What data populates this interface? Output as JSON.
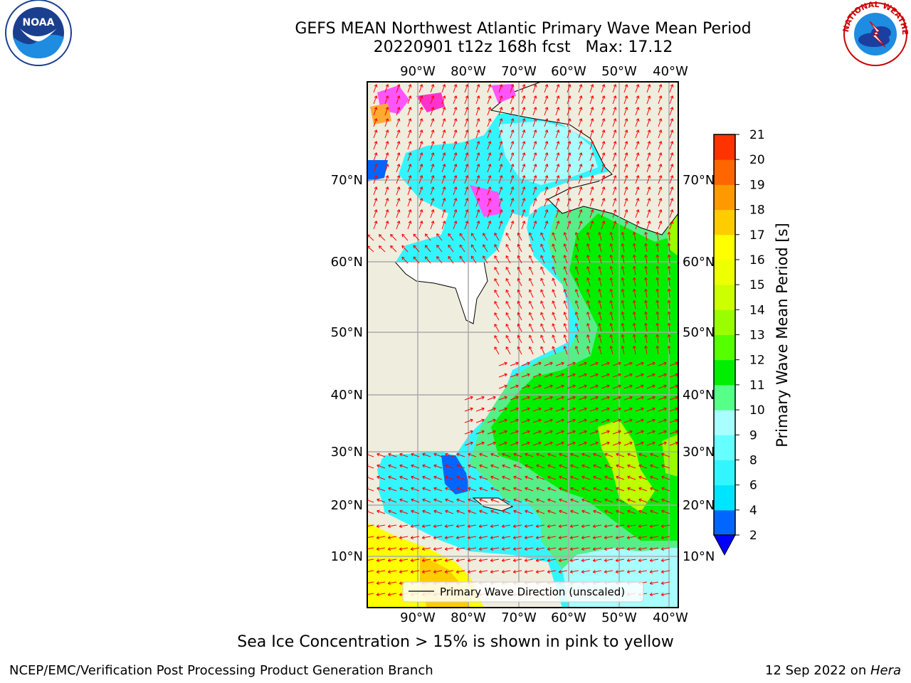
{
  "title_line1": "GEFS MEAN Northwest Atlantic Primary Wave Mean Period",
  "title_line2": "20220901 t12z 168h fcst   Max: 17.12",
  "map": {
    "lon_labels": [
      "90°W",
      "80°W",
      "70°W",
      "60°W",
      "50°W",
      "40°W"
    ],
    "lat_labels": [
      "70°N",
      "60°N",
      "50°N",
      "40°N",
      "30°N",
      "20°N",
      "10°N"
    ],
    "legend_label": "Primary Wave Direction (unscaled)",
    "arrow_color": "#ff0000",
    "land_color": "#efedde"
  },
  "colorbar": {
    "label": "Primary Wave Mean Period [s]",
    "ticks": [
      "2",
      "4",
      "6",
      "8",
      "9",
      "10",
      "11",
      "12",
      "13",
      "14",
      "15",
      "16",
      "17",
      "18",
      "19",
      "20",
      "21"
    ],
    "colors": [
      "#0066ff",
      "#00e5ff",
      "#33f5ff",
      "#66ffff",
      "#a8ffff",
      "#55ff88",
      "#00ee00",
      "#55ff00",
      "#99ff00",
      "#ccff00",
      "#eeff00",
      "#ffff00",
      "#ffcc00",
      "#ff9900",
      "#ff6600",
      "#ff3300",
      "#ff0000"
    ],
    "under_color": "#0000ff"
  },
  "note": "Sea Ice Concentration > 15% is shown in pink to yellow",
  "credit": "NCEP/EMC/Verification Post Processing Product Generation Branch",
  "date_text": "12 Sep 2022 on ",
  "date_host": "Hera",
  "logos": {
    "noaa_text": "NOAA",
    "nws_text": "NATIONAL WEATHER SERVICE"
  }
}
